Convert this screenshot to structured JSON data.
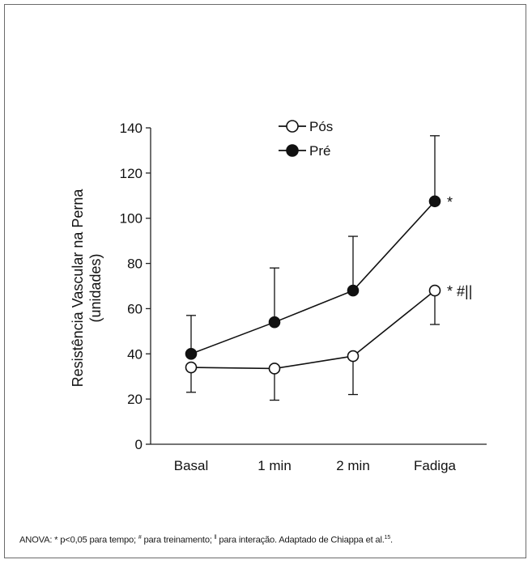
{
  "chart_data": {
    "type": "line",
    "categories": [
      "Basal",
      "1 min",
      "2 min",
      "Fadiga"
    ],
    "ylabel_line1": "Resistência Vascular na Perna",
    "ylabel_line2": "(unidades)",
    "ylim": [
      0,
      140
    ],
    "yticks": [
      0,
      20,
      40,
      60,
      80,
      100,
      120,
      140
    ],
    "legend_position": "top-center",
    "series": [
      {
        "name": "Pós",
        "marker": "open-circle",
        "values": [
          34,
          33.5,
          39,
          68
        ],
        "error_down": [
          23,
          19.5,
          22,
          53
        ],
        "error_up": null
      },
      {
        "name": "Pré",
        "marker": "filled-circle",
        "values": [
          40,
          54,
          68,
          107.5
        ],
        "error_up": [
          57,
          78,
          92,
          136.5
        ],
        "error_down": null
      }
    ],
    "annotations": [
      {
        "series": "Pré",
        "category": "Fadiga",
        "text": "*"
      },
      {
        "series": "Pós",
        "category": "Fadiga",
        "text": "* #||"
      }
    ]
  },
  "caption": {
    "text_1": "ANOVA: * p<0,05 para tempo; ",
    "sup_1": "#",
    "text_2": " para treinamento; ",
    "sup_2": "ll",
    "text_3": " para interação. Adaptado de Chiappa et al.",
    "sup_3": "15",
    "text_4": "."
  }
}
